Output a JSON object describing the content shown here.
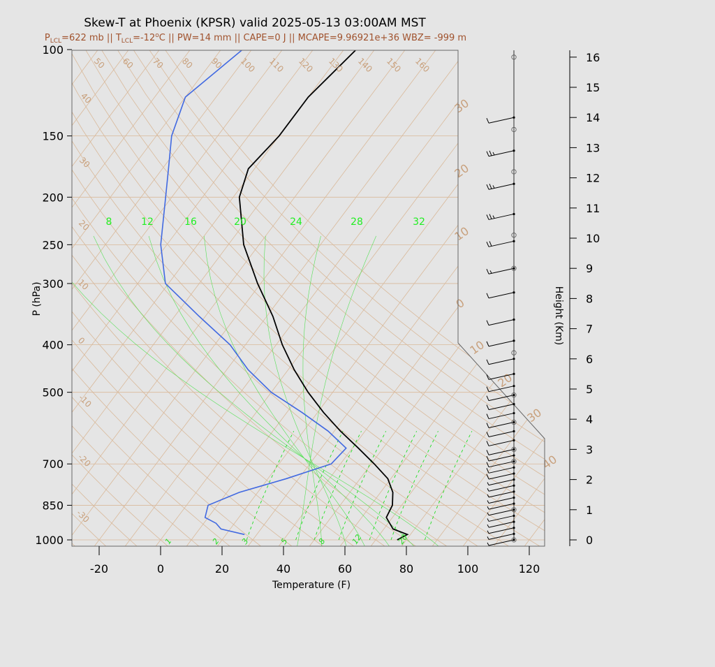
{
  "header": {
    "title": "Skew-T at Phoenix (KPSR) valid 2025-05-13 03:00AM MST",
    "subtitle_parts": {
      "p_lcl_symbol": "P",
      "p_lcl_sub": "LCL",
      "p_lcl_value": "=622 mb || ",
      "t_lcl_symbol": "T",
      "t_lcl_sub": "LCL",
      "t_lcl_value": "=-12",
      "t_lcl_sup": "o",
      "rest": "C || PW=14 mm || CAPE=0 J || MCAPE=9.96921e+36 WBZ= -999 m"
    }
  },
  "chart_data": {
    "type": "line",
    "title": "Skew-T at Phoenix (KPSR) valid 2025-05-13 03:00AM MST",
    "xlabel": "Temperature (F)",
    "ylabel": "P (hPa)",
    "y2label": "Height (Km)",
    "x_ticks": [
      "-20",
      "0",
      "20",
      "40",
      "60",
      "80",
      "100",
      "120"
    ],
    "y_ticks": [
      "100",
      "150",
      "200",
      "250",
      "300",
      "400",
      "500",
      "700",
      "850",
      "1000"
    ],
    "height_ticks": [
      "0",
      "1",
      "2",
      "3",
      "4",
      "5",
      "6",
      "7",
      "8",
      "9",
      "10",
      "11",
      "12",
      "13",
      "14",
      "15",
      "16"
    ],
    "colors": {
      "temperature": "#000000",
      "dewpoint": "#4169e1",
      "isotherm": "#d9b99a",
      "mixing": "#22dd22"
    },
    "series": [
      {
        "key": "temperature",
        "points": [
          [
            1000,
            77
          ],
          [
            975,
            79
          ],
          [
            950,
            73
          ],
          [
            900,
            68
          ],
          [
            850,
            67
          ],
          [
            800,
            64
          ],
          [
            750,
            59
          ],
          [
            700,
            51
          ],
          [
            650,
            42
          ],
          [
            600,
            32
          ],
          [
            550,
            22
          ],
          [
            500,
            12
          ],
          [
            450,
            2
          ],
          [
            400,
            -8
          ],
          [
            350,
            -18
          ],
          [
            300,
            -31
          ],
          [
            250,
            -45
          ],
          [
            200,
            -58
          ],
          [
            175,
            -62
          ],
          [
            150,
            -60
          ],
          [
            125,
            -60
          ],
          [
            100,
            -56
          ]
        ]
      },
      {
        "key": "dewpoint",
        "points": [
          [
            975,
            26
          ],
          [
            950,
            17
          ],
          [
            925,
            14
          ],
          [
            900,
            9
          ],
          [
            850,
            7
          ],
          [
            800,
            14
          ],
          [
            750,
            26
          ],
          [
            700,
            37
          ],
          [
            650,
            38
          ],
          [
            600,
            28
          ],
          [
            550,
            15
          ],
          [
            500,
            0
          ],
          [
            450,
            -13
          ],
          [
            400,
            -25
          ],
          [
            350,
            -42
          ],
          [
            300,
            -61
          ],
          [
            250,
            -72
          ],
          [
            200,
            -82
          ],
          [
            175,
            -88
          ],
          [
            150,
            -95
          ],
          [
            125,
            -100
          ],
          [
            100,
            -93
          ]
        ]
      }
    ],
    "isotherm_labels": [
      "50",
      "60",
      "70",
      "80",
      "90",
      "100",
      "110",
      "120",
      "130",
      "140",
      "150",
      "160",
      "40",
      "30",
      "20",
      "10",
      "0",
      "-10",
      "-20",
      "-30"
    ],
    "right_isotherm_labels": [
      "30",
      "20",
      "10",
      "0",
      "10",
      "20",
      "30",
      "40"
    ],
    "moist_adiabat_labels": [
      "8",
      "12",
      "16",
      "20",
      "24",
      "28",
      "32"
    ],
    "mixing_ratio_labels": [
      "1",
      "2",
      "3",
      "5",
      "8",
      "12",
      "20"
    ],
    "wind_barbs": {
      "heights_km": [
        0.0,
        0.2,
        0.4,
        0.6,
        0.8,
        1.0,
        1.2,
        1.4,
        1.6,
        1.8,
        2.0,
        2.2,
        2.4,
        2.6,
        2.8,
        3.0,
        3.3,
        3.6,
        3.9,
        4.2,
        4.5,
        4.8,
        5.1,
        5.5,
        6.0,
        6.6,
        7.3,
        8.2,
        9.0,
        9.9,
        10.8,
        11.8,
        12.9,
        14.0
      ],
      "speeds_kt": [
        5,
        5,
        5,
        5,
        5,
        5,
        5,
        5,
        5,
        5,
        5,
        10,
        10,
        10,
        10,
        10,
        10,
        10,
        10,
        10,
        10,
        10,
        10,
        10,
        10,
        10,
        10,
        10,
        15,
        20,
        25,
        25,
        25,
        10
      ]
    }
  }
}
